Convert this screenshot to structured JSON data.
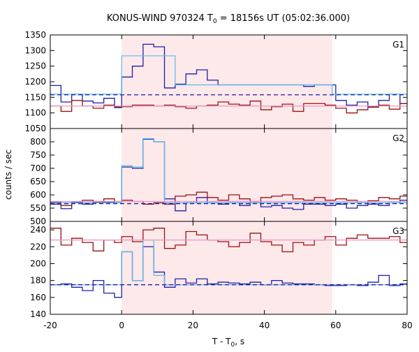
{
  "chart_data": {
    "type": "line",
    "title_main": "KONUS-WIND 970324 T",
    "title_sub": "0",
    "title_rest": " = 18156s UT (05:02:36.000)",
    "xlabel_main": "T - T",
    "xlabel_sub": "0",
    "xlabel_rest": ", s",
    "ylabel": "counts / sec",
    "xlim": [
      -20,
      80
    ],
    "x_ticks": [
      "-20",
      "0",
      "20",
      "40",
      "60",
      "80"
    ],
    "x_tick_values": [
      -20,
      0,
      20,
      40,
      60,
      80
    ],
    "shaded_interval": [
      0,
      59
    ],
    "colors": {
      "blue": "#1f1fa8",
      "red": "#9b1010",
      "lightblue": "#5bbde8",
      "pink": "#e896c8",
      "shade": "#fde8ea"
    },
    "panels": [
      {
        "label": "G1",
        "ylim": [
          1050,
          1350
        ],
        "y_ticks": [
          "1050",
          "1100",
          "1150",
          "1200",
          "1250",
          "1300",
          "1350"
        ],
        "y_tick_values": [
          1050,
          1100,
          1150,
          1200,
          1250,
          1300,
          1350
        ],
        "series": [
          {
            "color": "blue",
            "style": "step",
            "x": [
              -20,
              -17,
              -14,
              -11,
              -8,
              -5,
              -2,
              0,
              3,
              6,
              9,
              12,
              15,
              18,
              21,
              24,
              27,
              30,
              33,
              36,
              39,
              42,
              45,
              48,
              51,
              54,
              57,
              60,
              63,
              66,
              69,
              72,
              75,
              78,
              80
            ],
            "y": [
              1188,
              1135,
              1160,
              1138,
              1132,
              1147,
              1117,
              1215,
              1250,
              1320,
              1312,
              1180,
              1192,
              1225,
              1238,
              1205,
              1190,
              1190,
              1190,
              1190,
              1190,
              1190,
              1190,
              1190,
              1185,
              1190,
              1190,
              1140,
              1125,
              1135,
              1120,
              1140,
              1160,
              1130,
              1130
            ]
          },
          {
            "color": "red",
            "style": "step",
            "x": [
              -20,
              -17,
              -14,
              -11,
              -8,
              -5,
              -2,
              0,
              3,
              6,
              9,
              12,
              15,
              18,
              21,
              24,
              27,
              30,
              33,
              36,
              39,
              42,
              45,
              48,
              51,
              54,
              57,
              60,
              63,
              66,
              69,
              72,
              75,
              78,
              80
            ],
            "y": [
              1122,
              1105,
              1140,
              1122,
              1115,
              1125,
              1120,
              1120,
              1125,
              1125,
              1122,
              1125,
              1120,
              1115,
              1122,
              1125,
              1135,
              1128,
              1125,
              1138,
              1110,
              1120,
              1128,
              1105,
              1130,
              1130,
              1125,
              1115,
              1100,
              1110,
              1118,
              1125,
              1112,
              1130,
              1130
            ]
          },
          {
            "color": "lightblue",
            "style": "step",
            "x": [
              -20,
              0,
              15,
              59,
              80
            ],
            "y": [
              1160,
              1283,
              1190,
              1160,
              1160
            ]
          },
          {
            "color": "blue",
            "style": "dashed",
            "x": [
              -20,
              80
            ],
            "y": [
              1158,
              1158
            ]
          },
          {
            "color": "pink",
            "style": "solid",
            "x": [
              -20,
              80
            ],
            "y": [
              1122,
              1122
            ]
          }
        ]
      },
      {
        "label": "G2",
        "ylim": [
          500,
          850
        ],
        "y_ticks": [
          "500",
          "550",
          "600",
          "650",
          "700",
          "750",
          "800"
        ],
        "y_tick_values": [
          500,
          550,
          600,
          650,
          700,
          750,
          800
        ],
        "series": [
          {
            "color": "blue",
            "style": "step",
            "x": [
              -20,
              -17,
              -14,
              -11,
              -8,
              -5,
              -2,
              0,
              3,
              6,
              9,
              12,
              15,
              18,
              21,
              24,
              27,
              30,
              33,
              36,
              39,
              42,
              45,
              48,
              51,
              54,
              57,
              60,
              63,
              66,
              69,
              72,
              75,
              78,
              80
            ],
            "y": [
              565,
              548,
              572,
              565,
              575,
              572,
              570,
              705,
              700,
              810,
              800,
              585,
              540,
              570,
              590,
              570,
              565,
              570,
              560,
              575,
              555,
              560,
              550,
              545,
              565,
              565,
              560,
              565,
              550,
              560,
              565,
              560,
              570,
              580,
              580
            ]
          },
          {
            "color": "red",
            "style": "step",
            "x": [
              -20,
              -17,
              -14,
              -11,
              -8,
              -5,
              -2,
              0,
              3,
              6,
              9,
              12,
              15,
              18,
              21,
              24,
              27,
              30,
              33,
              36,
              39,
              42,
              45,
              48,
              51,
              54,
              57,
              60,
              63,
              66,
              69,
              72,
              75,
              78,
              80
            ],
            "y": [
              572,
              560,
              570,
              580,
              572,
              585,
              575,
              580,
              575,
              565,
              570,
              565,
              595,
              600,
              610,
              590,
              580,
              600,
              585,
              570,
              590,
              595,
              600,
              585,
              580,
              590,
              580,
              585,
              580,
              570,
              578,
              590,
              585,
              595,
              595
            ]
          },
          {
            "color": "lightblue",
            "style": "step",
            "x": [
              -20,
              0,
              3,
              6,
              9,
              12,
              59,
              80
            ],
            "y": [
              570,
              710,
              705,
              812,
              800,
              570,
              570,
              570
            ]
          },
          {
            "color": "blue",
            "style": "dashed",
            "x": [
              -20,
              80
            ],
            "y": [
              567,
              567
            ]
          },
          {
            "color": "pink",
            "style": "solid",
            "x": [
              -20,
              80
            ],
            "y": [
              575,
              575
            ]
          }
        ]
      },
      {
        "label": "G3",
        "ylim": [
          140,
          250
        ],
        "y_ticks": [
          "140",
          "160",
          "180",
          "200",
          "220",
          "240"
        ],
        "y_tick_values": [
          140,
          160,
          180,
          200,
          220,
          240
        ],
        "series": [
          {
            "color": "red",
            "style": "step",
            "x": [
              -20,
              -17,
              -14,
              -11,
              -8,
              -5,
              -2,
              0,
              3,
              6,
              9,
              12,
              15,
              18,
              21,
              24,
              27,
              30,
              33,
              36,
              39,
              42,
              45,
              48,
              51,
              54,
              57,
              60,
              63,
              66,
              69,
              72,
              75,
              78,
              80
            ],
            "y": [
              242,
              222,
              230,
              225,
              215,
              228,
              225,
              232,
              226,
              240,
              242,
              218,
              222,
              238,
              234,
              228,
              226,
              220,
              225,
              236,
              226,
              222,
              214,
              225,
              222,
              228,
              232,
              222,
              230,
              234,
              230,
              230,
              232,
              225,
              225
            ]
          },
          {
            "color": "blue",
            "style": "step",
            "x": [
              -20,
              -17,
              -14,
              -11,
              -8,
              -5,
              -2,
              0,
              3,
              6,
              9,
              12,
              15,
              18,
              21,
              24,
              27,
              30,
              33,
              36,
              39,
              42,
              45,
              48,
              51,
              54,
              57,
              60,
              63,
              66,
              69,
              72,
              75,
              78,
              80
            ],
            "y": [
              175,
              176,
              172,
              168,
              180,
              165,
              160,
              214,
              180,
              220,
              190,
              172,
              182,
              177,
              182,
              176,
              178,
              177,
              176,
              178,
              175,
              180,
              177,
              176,
              176,
              175,
              174,
              174,
              175,
              174,
              178,
              186,
              174,
              176,
              176
            ]
          },
          {
            "color": "lightblue",
            "style": "step",
            "x": [
              -20,
              0,
              3,
              6,
              9,
              12,
              59,
              80
            ],
            "y": [
              175,
              214,
              180,
              228,
              186,
              175,
              175,
              175
            ]
          },
          {
            "color": "blue",
            "style": "dashed",
            "x": [
              -20,
              80
            ],
            "y": [
              175,
              175
            ]
          },
          {
            "color": "pink",
            "style": "solid",
            "x": [
              -20,
              80
            ],
            "y": [
              228,
              228
            ]
          }
        ]
      }
    ]
  }
}
